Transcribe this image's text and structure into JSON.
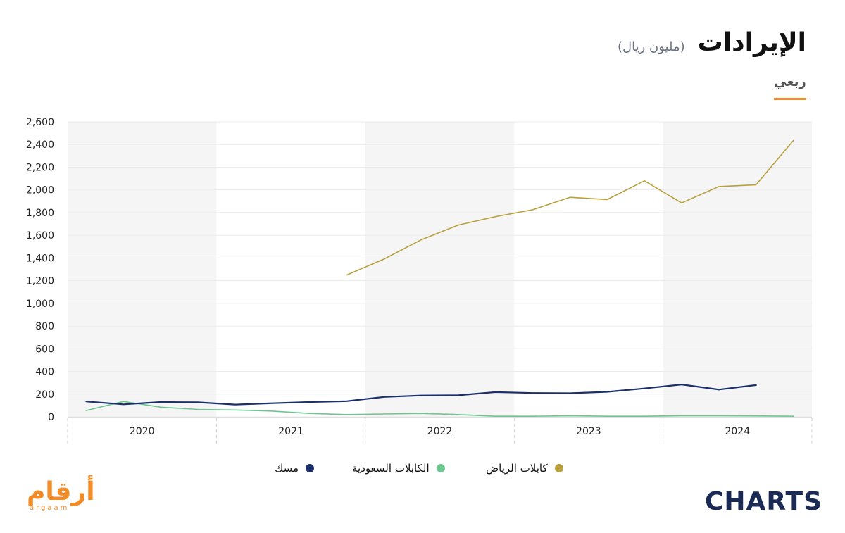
{
  "header": {
    "title": "الإيرادات",
    "unit": "(مليون ريال)",
    "tab_label": "ربعي"
  },
  "logos": {
    "left_arabic": "أرقام",
    "left_latin": "argaam",
    "right": "CHARTS"
  },
  "colors": {
    "accent": "#f28c28",
    "riyadh_cables": "#b8a03e",
    "saudi_cables": "#6cc78f",
    "mesc": "#1b2f6b",
    "band": "#f5f5f5"
  },
  "chart_data": {
    "type": "line",
    "title": "الإيرادات",
    "ylim": [
      0,
      2600
    ],
    "yticks": [
      0,
      200,
      400,
      600,
      800,
      1000,
      1200,
      1400,
      1600,
      1800,
      2000,
      2200,
      2400,
      2600
    ],
    "ytick_labels": [
      "0",
      "200",
      "400",
      "600",
      "800",
      "1,000",
      "1,200",
      "1,400",
      "1,600",
      "1,800",
      "2,000",
      "2,200",
      "2,400",
      "2,600"
    ],
    "years": [
      "2020",
      "2021",
      "2022",
      "2023",
      "2024"
    ],
    "x": [
      "2020 Q1",
      "2020 Q2",
      "2020 Q3",
      "2020 Q4",
      "2021 Q1",
      "2021 Q2",
      "2021 Q3",
      "2021 Q4",
      "2022 Q1",
      "2022 Q2",
      "2022 Q3",
      "2022 Q4",
      "2023 Q1",
      "2023 Q2",
      "2023 Q3",
      "2023 Q4",
      "2024 Q1",
      "2024 Q2",
      "2024 Q3",
      "2024 Q4"
    ],
    "grid": true,
    "legend_position": "bottom-center",
    "series": [
      {
        "name": "كابلات الرياض",
        "color": "#b8a03e",
        "values": [
          null,
          null,
          null,
          null,
          null,
          null,
          null,
          1250,
          1390,
          1560,
          1690,
          1765,
          1825,
          1935,
          1915,
          2080,
          1885,
          2030,
          2045,
          2435
        ]
      },
      {
        "name": "الكابلات السعودية",
        "color": "#6cc78f",
        "values": [
          55,
          135,
          85,
          65,
          60,
          50,
          30,
          20,
          25,
          30,
          20,
          5,
          5,
          10,
          5,
          5,
          10,
          10,
          8,
          5
        ]
      },
      {
        "name": "مسك",
        "color": "#1b2f6b",
        "values": [
          135,
          110,
          130,
          128,
          108,
          120,
          130,
          138,
          175,
          188,
          190,
          218,
          210,
          208,
          220,
          250,
          285,
          240,
          280,
          null
        ]
      }
    ]
  }
}
